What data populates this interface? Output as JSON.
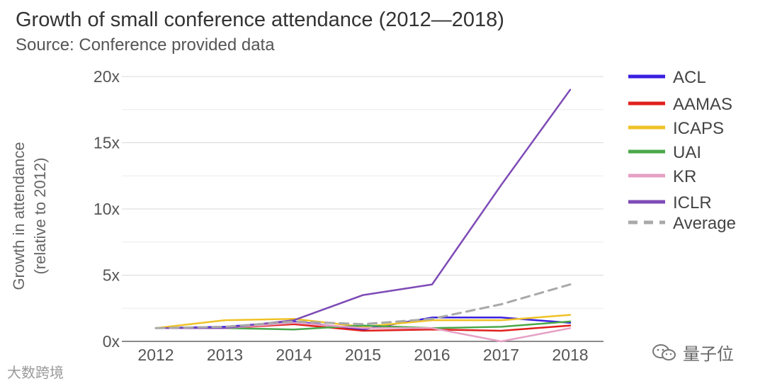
{
  "chart_data": {
    "type": "line",
    "title": "Growth of small conference attendance (2012—2018)",
    "subtitle": "Source: Conference provided data",
    "xlabel": "",
    "ylabel": [
      "Growth in attendance",
      "(relative to 2012)"
    ],
    "x": [
      "2012",
      "2013",
      "2014",
      "2015",
      "2016",
      "2017",
      "2018"
    ],
    "yticks": [
      0,
      5,
      10,
      15,
      20
    ],
    "ytick_labels": [
      "0x",
      "5x",
      "10x",
      "15x",
      "20x"
    ],
    "ylim": [
      0,
      20
    ],
    "grid": true,
    "legend_position": "right",
    "series": [
      {
        "name": "ACL",
        "color": "#3a1fe0",
        "dash": false,
        "values": [
          1.0,
          1.1,
          1.5,
          0.9,
          1.8,
          1.8,
          1.4
        ]
      },
      {
        "name": "AAMAS",
        "color": "#e0201c",
        "dash": false,
        "values": [
          1.0,
          1.0,
          1.3,
          0.8,
          0.9,
          0.8,
          1.2
        ]
      },
      {
        "name": "ICAPS",
        "color": "#efc226",
        "dash": false,
        "values": [
          1.0,
          1.6,
          1.7,
          1.1,
          1.6,
          1.6,
          2.0
        ]
      },
      {
        "name": "UAI",
        "color": "#4aa84a",
        "dash": false,
        "values": [
          1.0,
          1.0,
          0.9,
          1.2,
          1.0,
          1.1,
          1.5
        ]
      },
      {
        "name": "KR",
        "color": "#e6a0c4",
        "dash": false,
        "values": [
          1.0,
          1.0,
          1.4,
          1.0,
          1.0,
          0.0,
          1.0
        ]
      },
      {
        "name": "ICLR",
        "color": "#7e4bb6",
        "dash": false,
        "values": [
          1.0,
          1.0,
          1.6,
          3.5,
          4.3,
          11.8,
          19.0
        ]
      },
      {
        "name": "Average",
        "color": "#a9a9a9",
        "dash": true,
        "values": [
          1.0,
          1.1,
          1.5,
          1.3,
          1.7,
          2.8,
          4.3
        ]
      }
    ]
  },
  "watermarks": {
    "left": "大数跨境",
    "right": "量子位"
  }
}
